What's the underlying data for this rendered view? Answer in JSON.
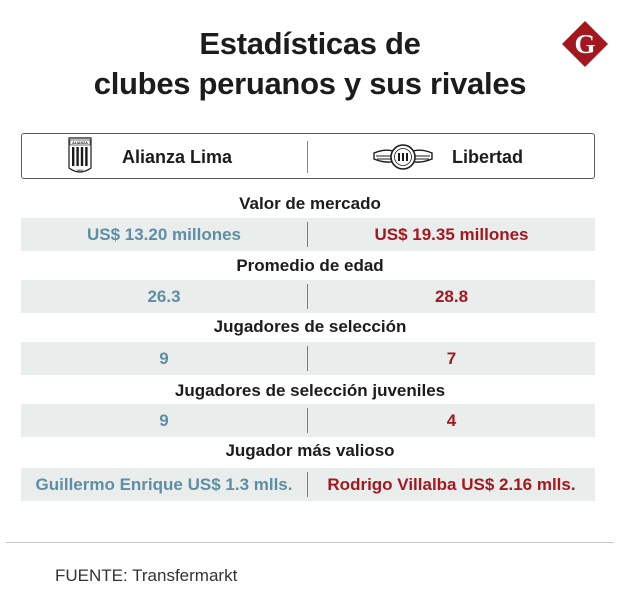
{
  "title_lines": [
    "Estadísticas de",
    "clubes peruanos y sus rivales"
  ],
  "brand_letter": "G",
  "brand_color": "#a5171f",
  "teams": {
    "left": {
      "name": "Alianza Lima",
      "crest": "alianza-lima-crest",
      "crest_text": "ALIANZA",
      "crest_year": "1901"
    },
    "right": {
      "name": "Libertad",
      "crest": "libertad-winged-crest",
      "crest_text": "LIBERTAD"
    }
  },
  "colors": {
    "left_value": "#5e8ea3",
    "right_value": "#a5171f",
    "row_background": "#e9eeed"
  },
  "stats": [
    {
      "label": "Valor de mercado",
      "left": "US$ 13.20 millones",
      "right": "US$ 19.35 millones"
    },
    {
      "label": "Promedio de edad",
      "left": "26.3",
      "right": "28.8"
    },
    {
      "label": "Jugadores de selección",
      "left": "9",
      "right": "7"
    },
    {
      "label": "Jugadores de selección juveniles",
      "left": "9",
      "right": "4"
    },
    {
      "label": "Jugador más valioso",
      "left": "Guillermo Enrique US$ 1.3 mlls.",
      "right": "Rodrigo Villalba US$ 2.16 mlls."
    }
  ],
  "source": "FUENTE: Transfermarkt"
}
